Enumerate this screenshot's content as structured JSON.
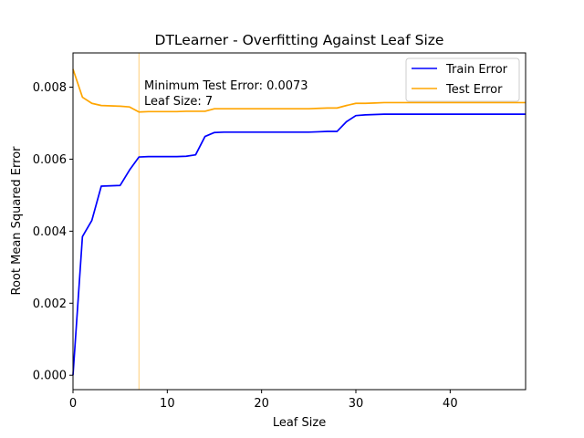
{
  "chart_data": {
    "type": "line",
    "title": "DTLearner - Overfitting Against Leaf Size",
    "xlabel": "Leaf Size",
    "ylabel": "Root Mean Squared Error",
    "xlim": [
      0,
      48
    ],
    "ylim": [
      -0.0004,
      0.00895
    ],
    "xticks": [
      0,
      10,
      20,
      30,
      40
    ],
    "xtick_labels": [
      "0",
      "10",
      "20",
      "30",
      "40"
    ],
    "yticks": [
      0.0,
      0.002,
      0.004,
      0.006,
      0.008
    ],
    "ytick_labels": [
      "0.000",
      "0.002",
      "0.004",
      "0.006",
      "0.008"
    ],
    "grid": false,
    "legend_position": "top-right",
    "series": [
      {
        "name": "Train Error",
        "color": "#0000ff",
        "x": [
          0,
          1,
          2,
          3,
          4,
          5,
          6,
          7,
          8,
          9,
          10,
          11,
          12,
          13,
          14,
          15,
          16,
          17,
          18,
          19,
          20,
          21,
          22,
          23,
          24,
          25,
          26,
          27,
          28,
          29,
          30,
          31,
          32,
          33,
          34,
          35,
          36,
          37,
          38,
          39,
          40,
          41,
          42,
          43,
          44,
          45,
          46,
          47,
          48
        ],
        "values": [
          0.0,
          0.00385,
          0.0043,
          0.00525,
          0.00526,
          0.00527,
          0.0057,
          0.00606,
          0.00607,
          0.00607,
          0.00607,
          0.00607,
          0.00608,
          0.00612,
          0.00663,
          0.00674,
          0.00675,
          0.00675,
          0.00675,
          0.00675,
          0.00675,
          0.00675,
          0.00675,
          0.00675,
          0.00675,
          0.00675,
          0.00676,
          0.00677,
          0.00677,
          0.00704,
          0.00721,
          0.00723,
          0.00724,
          0.00725,
          0.00725,
          0.00725,
          0.00725,
          0.00725,
          0.00725,
          0.00725,
          0.00725,
          0.00725,
          0.00725,
          0.00725,
          0.00725,
          0.00725,
          0.00725,
          0.00725,
          0.00725
        ]
      },
      {
        "name": "Test Error",
        "color": "#ffa500",
        "x": [
          0,
          1,
          2,
          3,
          4,
          5,
          6,
          7,
          8,
          9,
          10,
          11,
          12,
          13,
          14,
          15,
          16,
          17,
          18,
          19,
          20,
          21,
          22,
          23,
          24,
          25,
          26,
          27,
          28,
          29,
          30,
          31,
          32,
          33,
          34,
          35,
          36,
          37,
          38,
          39,
          40,
          41,
          42,
          43,
          44,
          45,
          46,
          47,
          48
        ],
        "values": [
          0.0085,
          0.00772,
          0.00755,
          0.00749,
          0.00748,
          0.00747,
          0.00745,
          0.00731,
          0.00732,
          0.00732,
          0.00732,
          0.00732,
          0.00733,
          0.00733,
          0.00733,
          0.0074,
          0.0074,
          0.0074,
          0.0074,
          0.0074,
          0.0074,
          0.0074,
          0.0074,
          0.0074,
          0.0074,
          0.0074,
          0.00741,
          0.00742,
          0.00742,
          0.00749,
          0.00755,
          0.00755,
          0.00756,
          0.00757,
          0.00757,
          0.00757,
          0.00757,
          0.00757,
          0.00757,
          0.00757,
          0.00757,
          0.00757,
          0.00757,
          0.00757,
          0.00757,
          0.00757,
          0.00757,
          0.00757,
          0.00757
        ]
      }
    ],
    "vline": {
      "x": 7,
      "color": "#ffa500"
    },
    "annotations": [
      "Minimum Test Error: 0.0073",
      "Leaf Size: 7"
    ]
  }
}
